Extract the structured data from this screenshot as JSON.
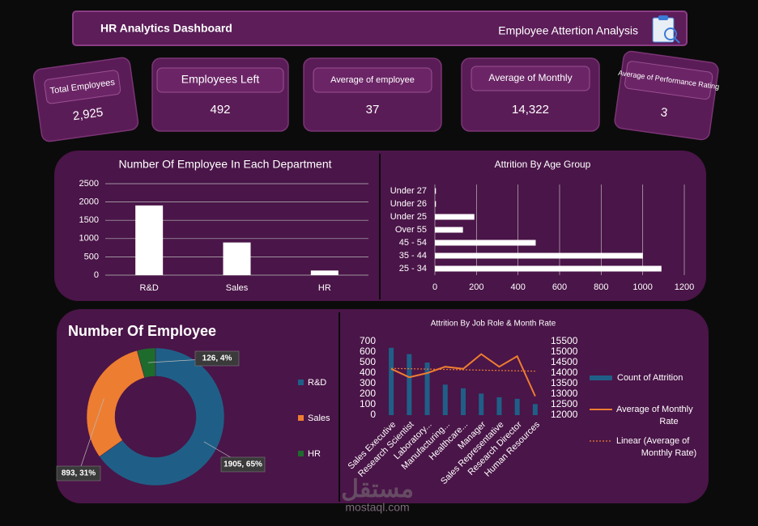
{
  "header": {
    "title": "HR Analytics Dashboard",
    "subtitle": "Employee Attertion Analysis"
  },
  "kpis": [
    {
      "label": "Total Employees",
      "value": "2,925"
    },
    {
      "label": "Employees Left",
      "value": "492"
    },
    {
      "label": "Average of employee",
      "value": "37"
    },
    {
      "label": "Average of Monthly",
      "value": "14,322"
    },
    {
      "label": "Average of Performance Rating",
      "value": "3"
    }
  ],
  "watermark": {
    "arabic": "مستقل",
    "latin": "mostaql.com"
  },
  "chart_data": [
    {
      "type": "bar",
      "title": "Number Of Employee In Each Department",
      "categories": [
        "R&D",
        "Sales",
        "HR"
      ],
      "values": [
        1905,
        893,
        126
      ],
      "color": "#ffffff",
      "ylim": [
        0,
        2500
      ],
      "yticks": [
        0,
        500,
        1000,
        1500,
        2000,
        2500
      ],
      "grid": true
    },
    {
      "type": "hbar",
      "title": "Attrition By Age Group",
      "categories": [
        "25 - 34",
        "35 - 44",
        "45 - 54",
        "Over 55",
        "Under 25",
        "Under 26",
        "Under 27"
      ],
      "values": [
        1090,
        1000,
        485,
        135,
        190,
        5,
        5
      ],
      "color": "#ffffff",
      "xlim": [
        0,
        1200
      ],
      "xticks": [
        0,
        200,
        400,
        600,
        800,
        1000,
        1200
      ],
      "grid": true
    },
    {
      "type": "donut",
      "title": "Number Of Employee",
      "categories": [
        "R&D",
        "Sales",
        "HR"
      ],
      "values": [
        1905,
        893,
        126
      ],
      "value_labels": [
        "1905, 65%",
        "893, 31%",
        "126, 4%"
      ],
      "colors": [
        "#1f5f87",
        "#ed7d31",
        "#1e6b2e"
      ],
      "legend": "right"
    },
    {
      "type": "combo",
      "title": "Attrition By Job Role & Month Rate",
      "categories": [
        "Sales Executive",
        "Research Scientist",
        "Laboratory...",
        "Manufacturing...",
        "Healthcare...",
        "Manager",
        "Sales Representative",
        "Research Director",
        "Human Resources"
      ],
      "series": [
        {
          "name": "Count of Attrition",
          "type": "bar",
          "color": "#1f5f87",
          "values": [
            640,
            580,
            500,
            290,
            255,
            205,
            170,
            155,
            105
          ]
        },
        {
          "name": "Average of Monthly Rate",
          "type": "line",
          "axis": "y2",
          "color": "#ed7d31",
          "values": [
            14200,
            13800,
            14000,
            14300,
            14200,
            14900,
            14300,
            14800,
            12900
          ]
        }
      ],
      "trendline": {
        "name": "Linear (Average of Monthly Rate)",
        "color": "#ed7d31"
      },
      "ylim": [
        0,
        700
      ],
      "yticks": [
        0,
        100,
        200,
        300,
        400,
        500,
        600,
        700
      ],
      "y2lim": [
        12000,
        15500
      ],
      "y2ticks": [
        12000,
        12500,
        13000,
        13500,
        14000,
        14500,
        15000,
        15500
      ],
      "legend": "right"
    }
  ]
}
